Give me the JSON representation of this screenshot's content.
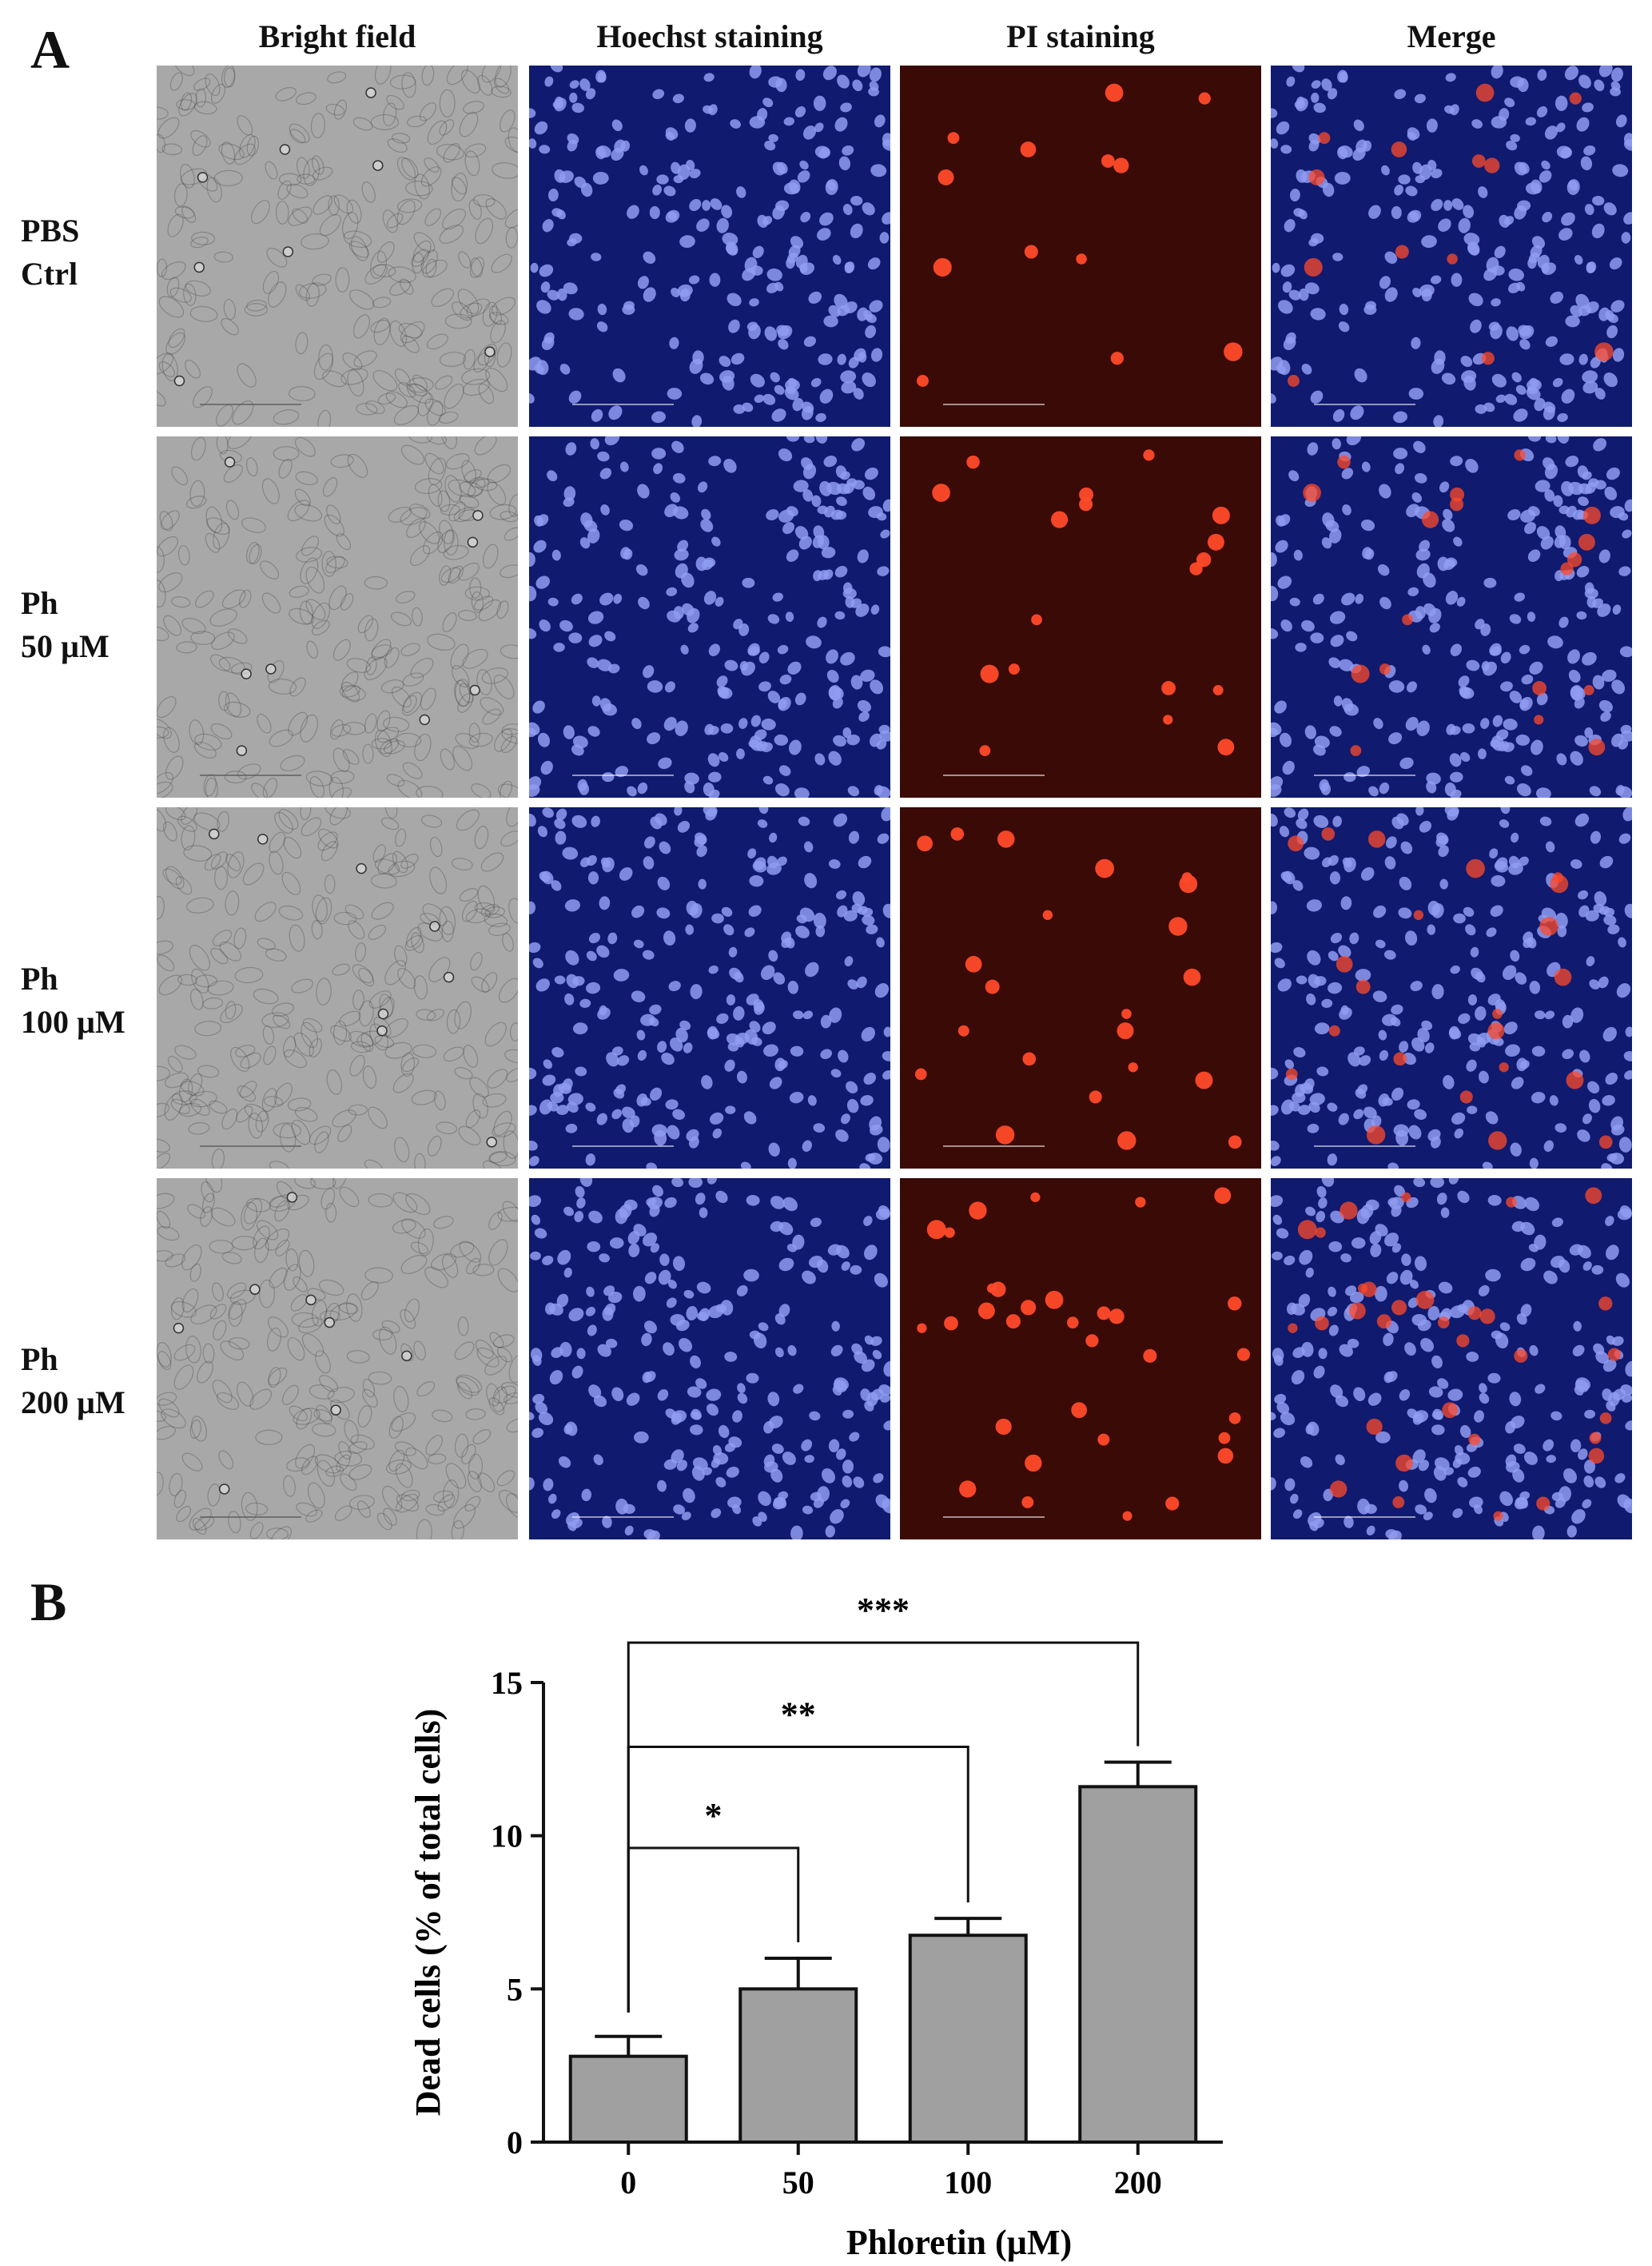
{
  "panel_a": {
    "letter": "A",
    "columns": [
      "Bright field",
      "Hoechst staining",
      "PI staining",
      "Merge"
    ],
    "rows": [
      {
        "line1": "PBS",
        "line2": "Ctrl",
        "pi_level": 0.25
      },
      {
        "line1": "Ph",
        "line2": "50 µM",
        "pi_level": 0.45
      },
      {
        "line1": "Ph",
        "line2": "100 µM",
        "pi_level": 0.6
      },
      {
        "line1": "Ph",
        "line2": "200 µM",
        "pi_level": 1.0
      }
    ],
    "colors": {
      "bright": "#a8a8a8",
      "hoechst_bg": "#101a6e",
      "nucleus": "#8f9cf2",
      "pi_bg": "#3a0a06",
      "pi_cell": "#ff4a2a"
    }
  },
  "panel_b": {
    "letter": "B"
  },
  "chart_data": {
    "type": "bar",
    "categories": [
      "0",
      "50",
      "100",
      "200"
    ],
    "values": [
      2.8,
      5.0,
      6.75,
      11.6
    ],
    "errors": [
      0.65,
      1.0,
      0.55,
      0.8
    ],
    "xlabel": "Phloretin (µM)",
    "ylabel": "Dead cells (% of total cells)",
    "ylim": [
      0,
      15
    ],
    "yticks": [
      0,
      5,
      10,
      15
    ],
    "bar_color": "#a0a0a0",
    "significance": [
      {
        "from": "0",
        "to": "50",
        "label": "*"
      },
      {
        "from": "0",
        "to": "100",
        "label": "**"
      },
      {
        "from": "0",
        "to": "200",
        "label": "***"
      }
    ],
    "grid": false
  }
}
